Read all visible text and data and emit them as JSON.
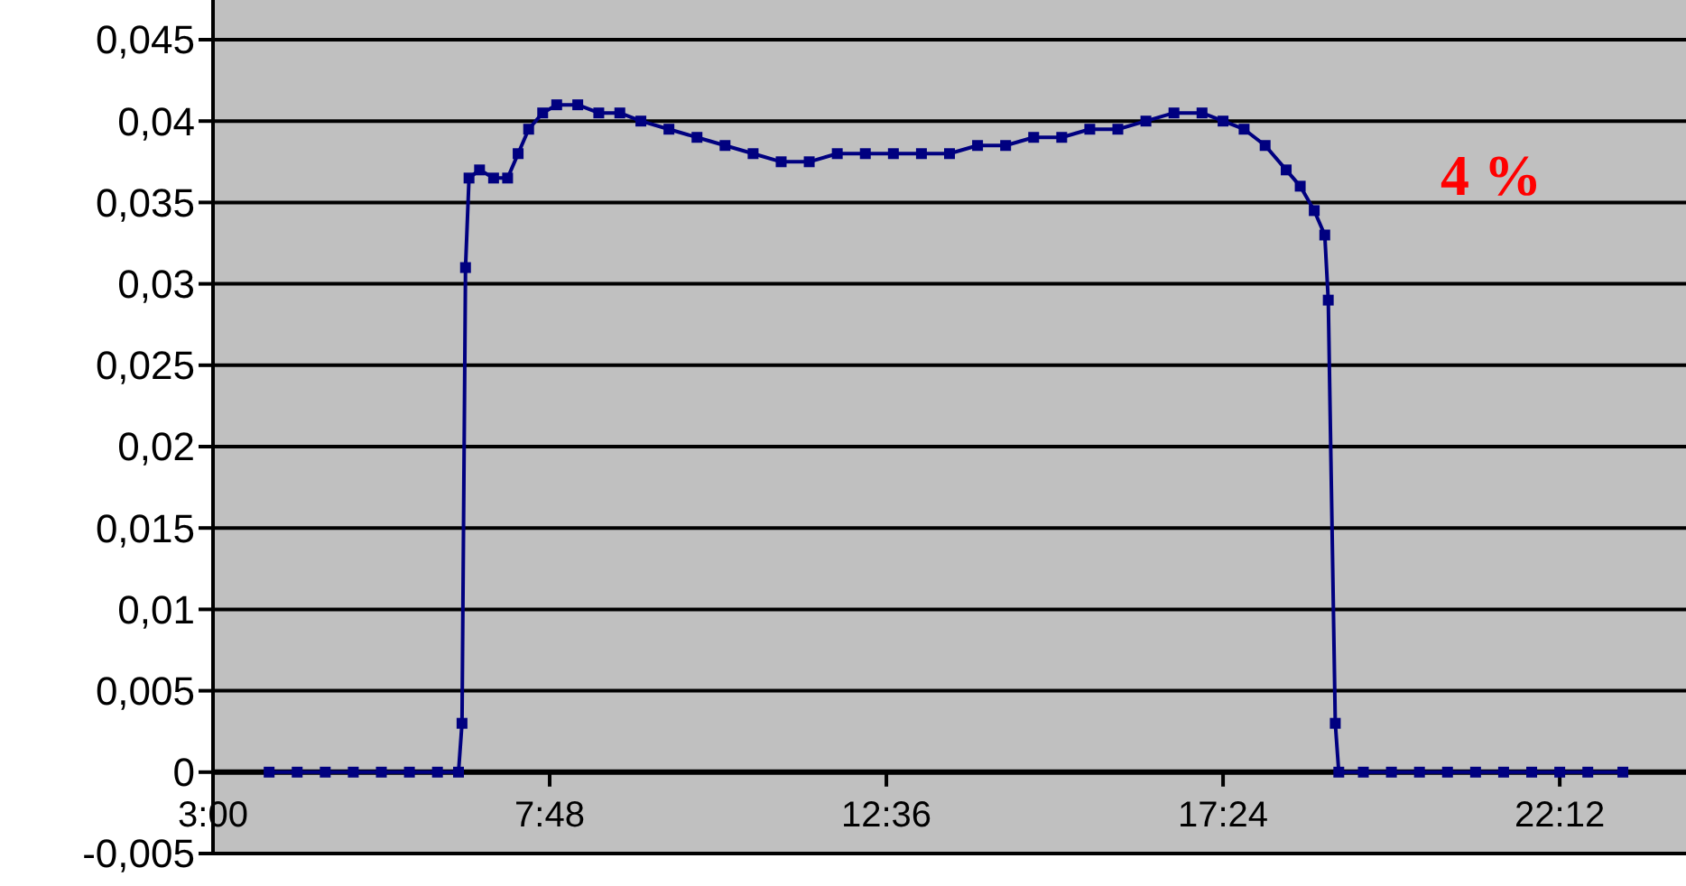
{
  "chart_data": {
    "type": "line",
    "annotations": [
      "4 %"
    ],
    "x": [
      3.8,
      4.2,
      4.6,
      5.0,
      5.4,
      5.8,
      6.2,
      6.5,
      6.55,
      6.6,
      6.65,
      6.8,
      7.0,
      7.2,
      7.35,
      7.5,
      7.7,
      7.9,
      8.2,
      8.5,
      8.8,
      9.1,
      9.5,
      9.9,
      10.3,
      10.7,
      11.1,
      11.5,
      11.9,
      12.3,
      12.7,
      13.1,
      13.5,
      13.9,
      14.3,
      14.7,
      15.1,
      15.5,
      15.9,
      16.3,
      16.7,
      17.1,
      17.4,
      17.7,
      18.0,
      18.3,
      18.5,
      18.7,
      18.85,
      18.9,
      19.0,
      19.05,
      19.4,
      19.8,
      20.2,
      20.6,
      21.0,
      21.4,
      21.8,
      22.2,
      22.6,
      23.1
    ],
    "series": [
      {
        "color": "#000080",
        "values": [
          0,
          0,
          0,
          0,
          0,
          0,
          0,
          0,
          0.003,
          0.031,
          0.0365,
          0.037,
          0.0365,
          0.0365,
          0.038,
          0.0395,
          0.0405,
          0.041,
          0.041,
          0.0405,
          0.0405,
          0.04,
          0.0395,
          0.039,
          0.0385,
          0.038,
          0.0375,
          0.0375,
          0.038,
          0.038,
          0.038,
          0.038,
          0.038,
          0.0385,
          0.0385,
          0.039,
          0.039,
          0.0395,
          0.0395,
          0.04,
          0.0405,
          0.0405,
          0.04,
          0.0395,
          0.0385,
          0.037,
          0.036,
          0.0345,
          0.033,
          0.029,
          0.003,
          0,
          0,
          0,
          0,
          0,
          0,
          0,
          0,
          0,
          0,
          0
        ]
      }
    ],
    "xlim": [
      3,
      24
    ],
    "xticks": [
      {
        "value": 3,
        "label": "3:00"
      },
      {
        "value": 7.8,
        "label": "7:48"
      },
      {
        "value": 12.6,
        "label": "12:36"
      },
      {
        "value": 17.4,
        "label": "17:24"
      },
      {
        "value": 22.2,
        "label": "22:12"
      }
    ],
    "ylim": [
      -0.005,
      0.045
    ],
    "yticks": [
      {
        "value": -0.005,
        "label": "-0,005"
      },
      {
        "value": 0,
        "label": "0"
      },
      {
        "value": 0.005,
        "label": "0,005"
      },
      {
        "value": 0.01,
        "label": "0,01"
      },
      {
        "value": 0.015,
        "label": "0,015"
      },
      {
        "value": 0.02,
        "label": "0,02"
      },
      {
        "value": 0.025,
        "label": "0,025"
      },
      {
        "value": 0.03,
        "label": "0,03"
      },
      {
        "value": 0.035,
        "label": "0,035"
      },
      {
        "value": 0.04,
        "label": "0,04"
      },
      {
        "value": 0.045,
        "label": "0,045"
      }
    ],
    "grid": "y",
    "marker": "square"
  }
}
